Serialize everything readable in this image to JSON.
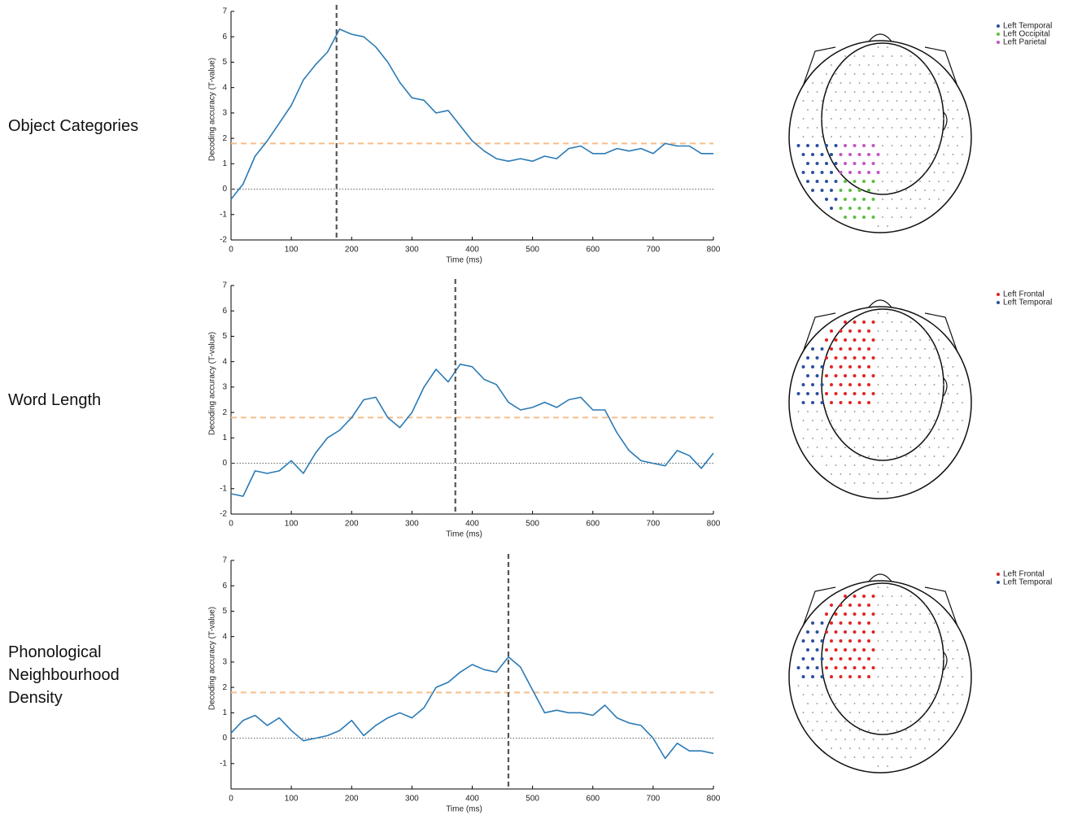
{
  "chart_data": [
    {
      "type": "line",
      "row_label": "Object Categories",
      "xlabel": "Time (ms)",
      "ylabel": "Decoding accuracy (T-value)",
      "x": [
        0,
        20,
        40,
        60,
        80,
        100,
        120,
        140,
        160,
        180,
        200,
        220,
        240,
        260,
        280,
        300,
        320,
        340,
        360,
        380,
        400,
        420,
        440,
        460,
        480,
        500,
        520,
        540,
        560,
        580,
        600,
        620,
        640,
        660,
        680,
        700,
        720,
        740,
        760,
        780,
        800
      ],
      "series": [
        {
          "color": "#2a7ab5",
          "values": [
            -0.4,
            0.2,
            1.3,
            1.9,
            2.6,
            3.3,
            4.3,
            4.9,
            5.4,
            6.3,
            6.1,
            6.0,
            5.6,
            5.0,
            4.2,
            3.6,
            3.5,
            3.0,
            3.1,
            2.5,
            1.9,
            1.5,
            1.2,
            1.1,
            1.2,
            1.1,
            1.3,
            1.2,
            1.6,
            1.7,
            1.4,
            1.4,
            1.6,
            1.5,
            1.6,
            1.4,
            1.8,
            1.7,
            1.7,
            1.4,
            1.4
          ]
        }
      ],
      "xlim": [
        0,
        800
      ],
      "ylim": [
        -2,
        7
      ],
      "xticks": [
        0,
        100,
        200,
        300,
        400,
        500,
        600,
        700,
        800
      ],
      "yticks": [
        -2,
        -1,
        0,
        1,
        2,
        3,
        4,
        5,
        6,
        7
      ],
      "threshold": 1.8,
      "threshold_color": "#f7bd8a",
      "peak_time": 175,
      "peak_color": "#555555",
      "topomap": {
        "legend": [
          {
            "name": "Left Temporal",
            "color": "#2b4f9e"
          },
          {
            "name": "Left Occipital",
            "color": "#5cbf3f"
          },
          {
            "name": "Left Parietal",
            "color": "#c254c4"
          }
        ]
      }
    },
    {
      "type": "line",
      "row_label": "Word Length",
      "xlabel": "Time (ms)",
      "ylabel": "Decoding accuracy (T-value)",
      "x": [
        0,
        20,
        40,
        60,
        80,
        100,
        120,
        140,
        160,
        180,
        200,
        220,
        240,
        260,
        280,
        300,
        320,
        340,
        360,
        380,
        400,
        420,
        440,
        460,
        480,
        500,
        520,
        540,
        560,
        580,
        600,
        620,
        640,
        660,
        680,
        700,
        720,
        740,
        760,
        780,
        800
      ],
      "series": [
        {
          "color": "#2a7ab5",
          "values": [
            -1.2,
            -1.3,
            -0.3,
            -0.4,
            -0.3,
            0.1,
            -0.4,
            0.4,
            1.0,
            1.3,
            1.8,
            2.5,
            2.6,
            1.8,
            1.4,
            2.0,
            3.0,
            3.7,
            3.2,
            3.9,
            3.8,
            3.3,
            3.1,
            2.4,
            2.1,
            2.2,
            2.4,
            2.2,
            2.5,
            2.6,
            2.1,
            2.1,
            1.2,
            0.5,
            0.1,
            0.0,
            -0.1,
            0.5,
            0.3,
            -0.2,
            0.4
          ]
        }
      ],
      "xlim": [
        0,
        800
      ],
      "ylim": [
        -2,
        7
      ],
      "xticks": [
        0,
        100,
        200,
        300,
        400,
        500,
        600,
        700,
        800
      ],
      "yticks": [
        -2,
        -1,
        0,
        1,
        2,
        3,
        4,
        5,
        6,
        7
      ],
      "threshold": 1.8,
      "threshold_color": "#f7bd8a",
      "peak_time": 372,
      "peak_color": "#555555",
      "topomap": {
        "legend": [
          {
            "name": "Left Frontal",
            "color": "#e02424"
          },
          {
            "name": "Left Temporal",
            "color": "#2b4f9e"
          }
        ]
      }
    },
    {
      "type": "line",
      "row_label": "Phonological Neighbourhood Density",
      "xlabel": "Time (ms)",
      "ylabel": "Decoding accuracy (T-value)",
      "x": [
        0,
        20,
        40,
        60,
        80,
        100,
        120,
        140,
        160,
        180,
        200,
        220,
        240,
        260,
        280,
        300,
        320,
        340,
        360,
        380,
        400,
        420,
        440,
        460,
        480,
        500,
        520,
        540,
        560,
        580,
        600,
        620,
        640,
        660,
        680,
        700,
        720,
        740,
        760,
        780,
        800
      ],
      "series": [
        {
          "color": "#2a7ab5",
          "values": [
            0.2,
            0.7,
            0.9,
            0.5,
            0.8,
            0.3,
            -0.1,
            0.0,
            0.1,
            0.3,
            0.7,
            0.1,
            0.5,
            0.8,
            1.0,
            0.8,
            1.2,
            2.0,
            2.2,
            2.6,
            2.9,
            2.7,
            2.6,
            3.2,
            2.8,
            1.9,
            1.0,
            1.1,
            1.0,
            1.0,
            0.9,
            1.3,
            0.8,
            0.6,
            0.5,
            0.0,
            -0.8,
            -0.2,
            -0.5,
            -0.5,
            -0.6
          ]
        }
      ],
      "xlim": [
        0,
        800
      ],
      "ylim": [
        -2,
        7
      ],
      "xticks": [
        0,
        100,
        200,
        300,
        400,
        500,
        600,
        700,
        800
      ],
      "yticks": [
        -1,
        0,
        1,
        2,
        3,
        4,
        5,
        6,
        7
      ],
      "threshold": 1.8,
      "threshold_color": "#f7bd8a",
      "peak_time": 460,
      "peak_color": "#555555",
      "topomap": {
        "legend": [
          {
            "name": "Left Frontal",
            "color": "#e02424"
          },
          {
            "name": "Left Temporal",
            "color": "#2b4f9e"
          }
        ]
      }
    }
  ]
}
